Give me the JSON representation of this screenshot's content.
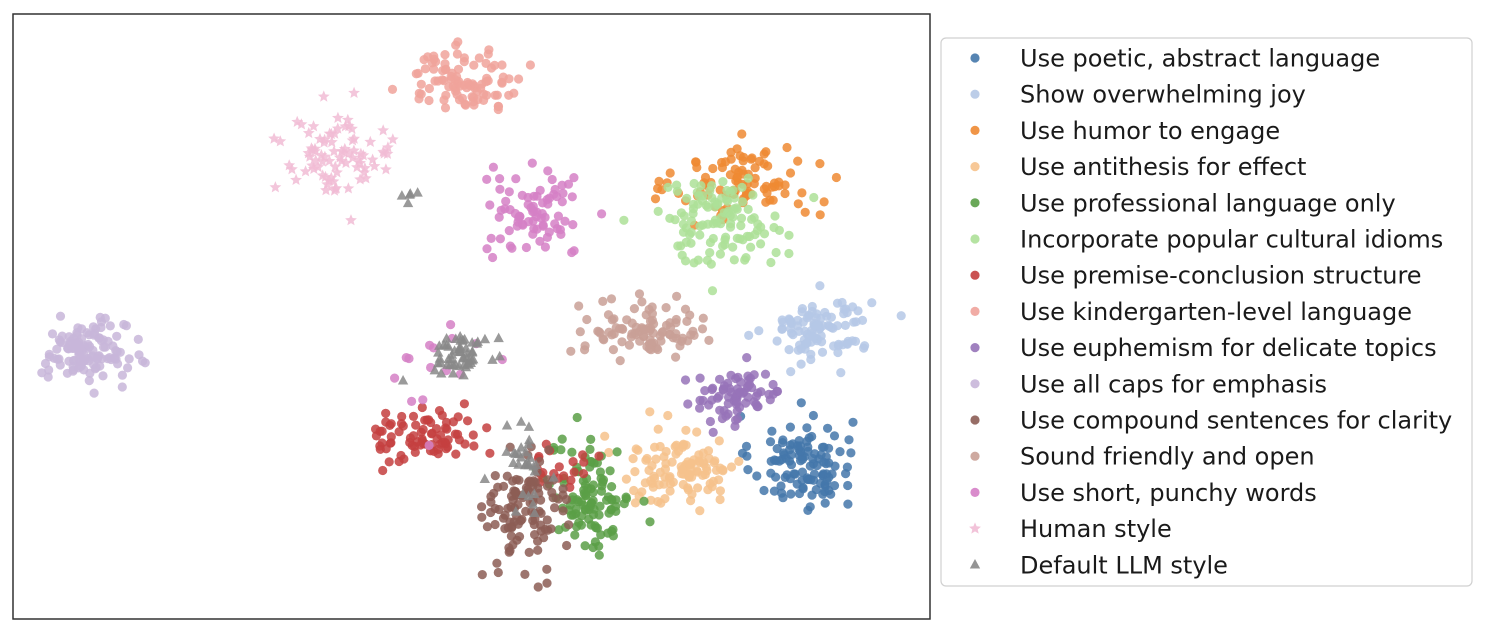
{
  "chart_data": {
    "type": "scatter",
    "title": "",
    "xlabel": "",
    "ylabel": "",
    "xlim": [
      0,
      100
    ],
    "ylim": [
      0,
      100
    ],
    "grid": false,
    "axis_ticks": false,
    "legend_placement": "right-outside",
    "series": [
      {
        "name": "Use poetic, abstract language",
        "color": "#4477aa",
        "marker": "circle",
        "clusters": [
          {
            "cx": 86,
            "cy": 26,
            "sx": 5.0,
            "sy": 7.0,
            "n": 115
          }
        ]
      },
      {
        "name": "Show overwhelming joy",
        "color": "#b5c8e6",
        "marker": "circle",
        "clusters": [
          {
            "cx": 88,
            "cy": 48,
            "sx": 5.0,
            "sy": 5.0,
            "n": 100
          }
        ]
      },
      {
        "name": "Use humor to engage",
        "color": "#ee8a33",
        "marker": "circle",
        "clusters": [
          {
            "cx": 80,
            "cy": 72,
            "sx": 7.0,
            "sy": 5.5,
            "n": 95
          }
        ]
      },
      {
        "name": "Use antithesis for effect",
        "color": "#f6c28c",
        "marker": "circle",
        "clusters": [
          {
            "cx": 73,
            "cy": 25,
            "sx": 6.0,
            "sy": 6.0,
            "n": 110
          }
        ]
      },
      {
        "name": "Use professional language only",
        "color": "#5a9f47",
        "marker": "circle",
        "clusters": [
          {
            "cx": 63,
            "cy": 20,
            "sx": 4.0,
            "sy": 8.0,
            "n": 105
          }
        ]
      },
      {
        "name": "Incorporate popular cultural idioms",
        "color": "#ade098",
        "marker": "circle",
        "clusters": [
          {
            "cx": 77,
            "cy": 66,
            "sx": 6.5,
            "sy": 6.5,
            "n": 115
          }
        ]
      },
      {
        "name": "Use premise-conclusion structure",
        "color": "#c43f3f",
        "marker": "circle",
        "clusters": [
          {
            "cx": 45,
            "cy": 30,
            "sx": 5.5,
            "sy": 4.0,
            "n": 80
          },
          {
            "cx": 60,
            "cy": 26,
            "sx": 2.5,
            "sy": 6.0,
            "n": 20
          }
        ]
      },
      {
        "name": "Use kindergarten-level language",
        "color": "#f0a39b",
        "marker": "circle",
        "clusters": [
          {
            "cx": 49,
            "cy": 89,
            "sx": 6.0,
            "sy": 4.5,
            "n": 95
          }
        ]
      },
      {
        "name": "Use euphemism for delicate topics",
        "color": "#9673b8",
        "marker": "circle",
        "clusters": [
          {
            "cx": 79,
            "cy": 37,
            "sx": 5.0,
            "sy": 4.0,
            "n": 75
          }
        ]
      },
      {
        "name": "Use all caps for emphasis",
        "color": "#c8b6d9",
        "marker": "circle",
        "clusters": [
          {
            "cx": 8,
            "cy": 44,
            "sx": 4.0,
            "sy": 4.5,
            "n": 125
          }
        ]
      },
      {
        "name": "Use compound sentences for clarity",
        "color": "#8c5d55",
        "marker": "circle",
        "clusters": [
          {
            "cx": 56,
            "cy": 18,
            "sx": 4.0,
            "sy": 8.5,
            "n": 110
          }
        ]
      },
      {
        "name": "Sound friendly and open",
        "color": "#c9a096",
        "marker": "circle",
        "clusters": [
          {
            "cx": 69,
            "cy": 48,
            "sx": 6.0,
            "sy": 4.0,
            "n": 95
          }
        ]
      },
      {
        "name": "Use short, punchy words",
        "color": "#d580c6",
        "marker": "circle",
        "clusters": [
          {
            "cx": 57,
            "cy": 67,
            "sx": 5.0,
            "sy": 6.5,
            "n": 80
          },
          {
            "cx": 47,
            "cy": 42,
            "sx": 6.0,
            "sy": 8.0,
            "n": 15
          }
        ]
      },
      {
        "name": "Human style",
        "color": "#f1bcd5",
        "marker": "star",
        "clusters": [
          {
            "cx": 35,
            "cy": 76,
            "sx": 6.0,
            "sy": 6.0,
            "n": 85
          }
        ]
      },
      {
        "name": "Default LLM style",
        "color": "#888888",
        "marker": "triangle",
        "clusters": [
          {
            "cx": 49,
            "cy": 44,
            "sx": 3.0,
            "sy": 3.0,
            "n": 55
          },
          {
            "cx": 56,
            "cy": 26,
            "sx": 2.0,
            "sy": 6.0,
            "n": 30
          },
          {
            "cx": 44,
            "cy": 70,
            "sx": 1.5,
            "sy": 1.5,
            "n": 5
          }
        ]
      }
    ]
  }
}
